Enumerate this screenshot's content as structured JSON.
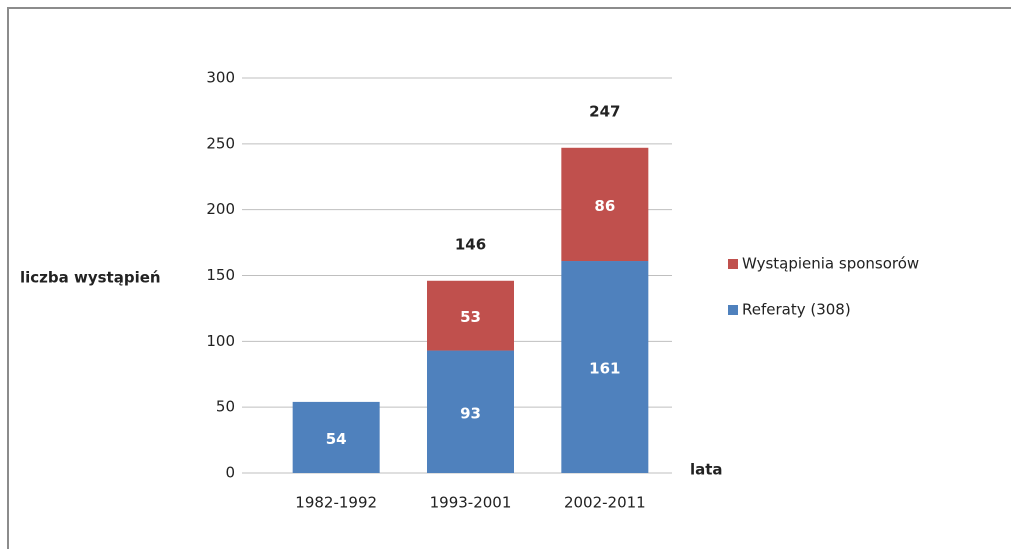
{
  "chart_data": {
    "type": "stacked_bar",
    "ylabel": "liczba wystąpień",
    "xlabel": "lata",
    "categories": [
      "1982-1992",
      "1993-2001",
      "2002-2011"
    ],
    "series": [
      {
        "name": "Referaty (308)",
        "color": "#4f81bd",
        "values": [
          54,
          93,
          161
        ]
      },
      {
        "name": "Wystąpienia sponsorów",
        "color": "#c0504d",
        "values": [
          null,
          53,
          86
        ]
      }
    ],
    "totals": [
      null,
      146,
      247
    ],
    "ylim": [
      0,
      300
    ],
    "yticks": [
      0,
      50,
      100,
      150,
      200,
      250,
      300
    ],
    "grid": true,
    "legend": "right"
  }
}
